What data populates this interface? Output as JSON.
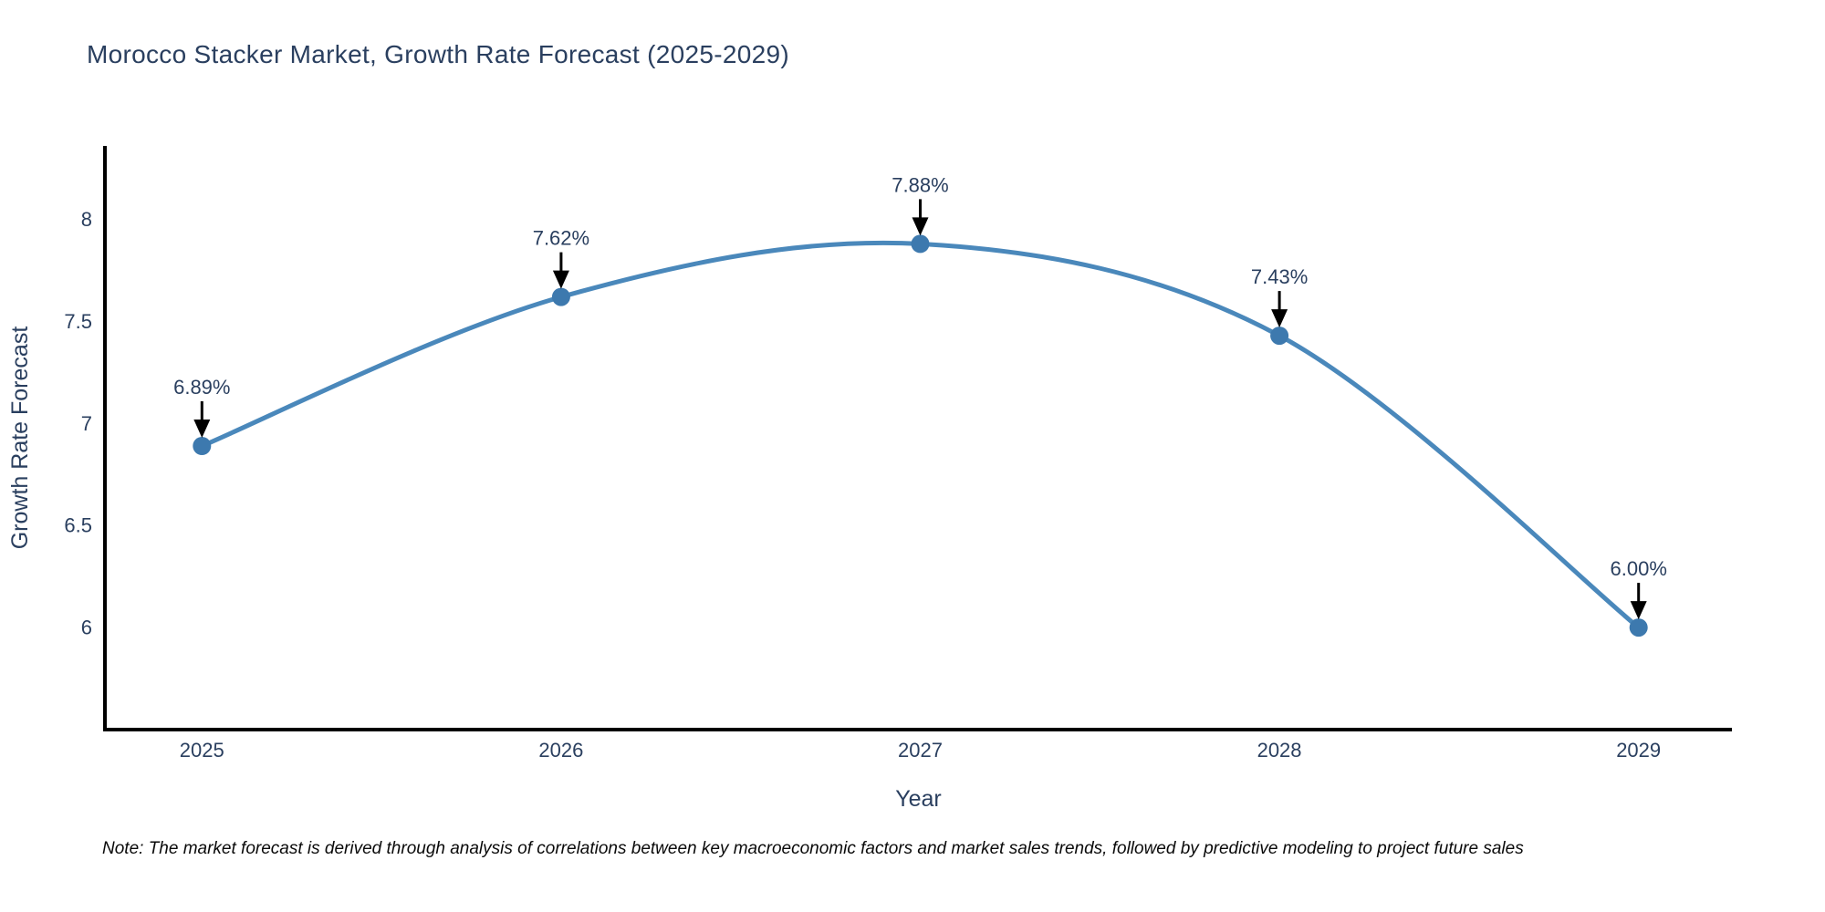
{
  "page": {
    "note": "Note: The market forecast is derived through analysis of correlations between key macroeconomic factors and market sales trends, followed by predictive modeling to project future sales"
  },
  "chart_data": {
    "type": "line",
    "title": "Morocco Stacker Market, Growth Rate Forecast (2025-2029)",
    "xlabel": "Year",
    "ylabel": "Growth Rate Forecast",
    "x": [
      2025,
      2026,
      2027,
      2028,
      2029
    ],
    "values": [
      6.89,
      7.62,
      7.88,
      7.43,
      6.0
    ],
    "point_labels": [
      "6.89%",
      "7.62%",
      "7.88%",
      "7.43%",
      "6.00%"
    ],
    "xtick_labels": [
      "2025",
      "2026",
      "2027",
      "2028",
      "2029"
    ],
    "yticks": [
      6,
      6.5,
      7,
      7.5,
      8
    ],
    "ytick_labels": [
      "6",
      "6.5",
      "7",
      "7.5",
      "8"
    ],
    "xlim": [
      2024.73,
      2029.26
    ],
    "ylim": [
      5.5,
      8.36
    ],
    "line_shape": "spline",
    "grid": false,
    "legend": "none",
    "annotations": "value labels with downward arrows above each point",
    "colors": {
      "line": "#4a88bb",
      "marker": "#3d79ae",
      "axis": "#000000",
      "text": "#2a3f5f",
      "arrow": "#000000"
    }
  }
}
